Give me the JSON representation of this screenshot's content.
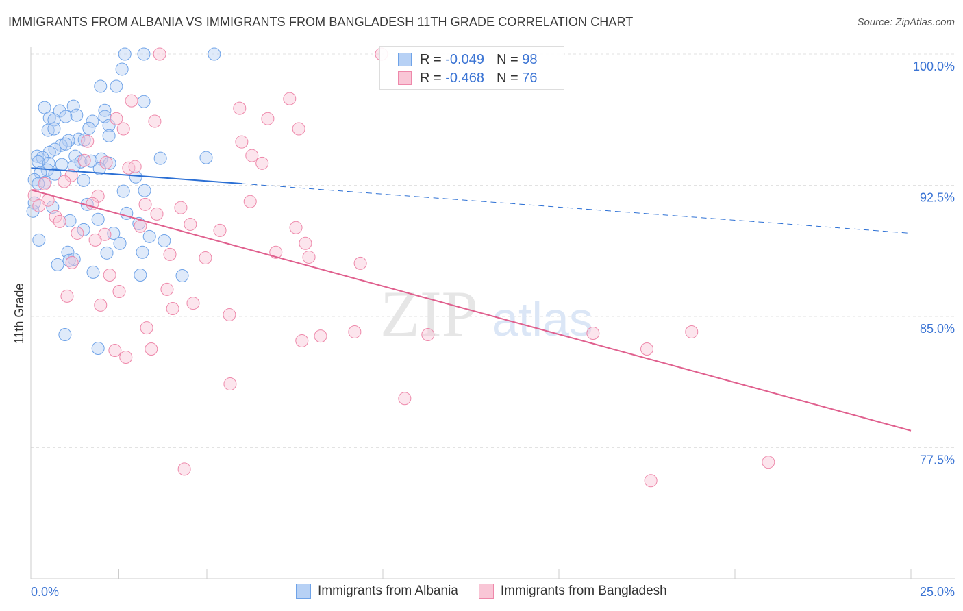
{
  "title": "IMMIGRANTS FROM ALBANIA VS IMMIGRANTS FROM BANGLADESH 11TH GRADE CORRELATION CHART",
  "source": "Source: ZipAtlas.com",
  "watermark": "ZIPatlas",
  "colors": {
    "albania": "#6fa3e8",
    "albania_fill": "#b7d1f5",
    "bangladesh": "#ee88aa",
    "bangladesh_fill": "#f9c6d6",
    "albania_line": "#2b6fd4",
    "bangladesh_line": "#e0608e",
    "accent": "#3b74d4"
  },
  "legend": {
    "rows": [
      {
        "r_label": "R = ",
        "r": "-0.049",
        "n_label": "N = ",
        "n": "98"
      },
      {
        "r_label": "R = ",
        "r": "-0.468",
        "n_label": "N = ",
        "n": "76"
      }
    ]
  },
  "chart_data": {
    "type": "scatter",
    "title": "IMMIGRANTS FROM ALBANIA VS IMMIGRANTS FROM BANGLADESH 11TH GRADE CORRELATION CHART",
    "xlabel": "",
    "ylabel": "11th Grade",
    "xlim": [
      0,
      25
    ],
    "ylim": [
      70,
      100
    ],
    "x_tick_labels": [
      "0.0%",
      "25.0%"
    ],
    "y_ticks": [
      100,
      92.5,
      85,
      77.5
    ],
    "y_tick_labels": [
      "100.0%",
      "92.5%",
      "85.0%",
      "77.5%"
    ],
    "grid": true,
    "legend_position": "bottom",
    "series": [
      {
        "name": "Immigrants from Albania",
        "R": -0.049,
        "N": 98,
        "trend": {
          "x0": 0,
          "y0": 93.49,
          "x1": 25,
          "y1": 89.76,
          "solid_until_x": 6.0
        },
        "points": [
          [
            2.67,
            100
          ],
          [
            3.21,
            100
          ],
          [
            5.21,
            100
          ],
          [
            2.59,
            99.14
          ],
          [
            1.98,
            98.16
          ],
          [
            2.43,
            98.16
          ],
          [
            3.21,
            97.29
          ],
          [
            0.39,
            96.94
          ],
          [
            1.21,
            97.02
          ],
          [
            0.82,
            96.75
          ],
          [
            2.1,
            96.78
          ],
          [
            1.3,
            96.51
          ],
          [
            0.53,
            96.35
          ],
          [
            0.66,
            96.24
          ],
          [
            0.99,
            96.43
          ],
          [
            2.1,
            96.43
          ],
          [
            1.75,
            96.16
          ],
          [
            2.22,
            95.92
          ],
          [
            1.65,
            95.76
          ],
          [
            0.49,
            95.65
          ],
          [
            0.66,
            95.73
          ],
          [
            2.22,
            95.33
          ],
          [
            1.36,
            95.14
          ],
          [
            1.07,
            95.06
          ],
          [
            1.52,
            95.1
          ],
          [
            0.86,
            94.78
          ],
          [
            0.99,
            94.86
          ],
          [
            0.68,
            94.55
          ],
          [
            0.53,
            94.39
          ],
          [
            0.18,
            94.16
          ],
          [
            0.33,
            94.08
          ],
          [
            1.26,
            94.16
          ],
          [
            2.0,
            94.0
          ],
          [
            3.68,
            94.04
          ],
          [
            4.98,
            94.08
          ],
          [
            0.21,
            93.84
          ],
          [
            0.51,
            93.76
          ],
          [
            0.88,
            93.69
          ],
          [
            1.42,
            93.84
          ],
          [
            1.71,
            93.88
          ],
          [
            2.24,
            93.76
          ],
          [
            1.23,
            93.61
          ],
          [
            1.95,
            93.45
          ],
          [
            0.47,
            93.37
          ],
          [
            0.27,
            93.22
          ],
          [
            0.68,
            93.14
          ],
          [
            2.98,
            92.98
          ],
          [
            1.5,
            92.78
          ],
          [
            0.41,
            92.67
          ],
          [
            0.1,
            92.82
          ],
          [
            0.21,
            92.59
          ],
          [
            2.63,
            92.16
          ],
          [
            3.23,
            92.2
          ],
          [
            0.1,
            91.49
          ],
          [
            0.62,
            91.25
          ],
          [
            1.6,
            91.41
          ],
          [
            0.06,
            91.02
          ],
          [
            2.72,
            90.9
          ],
          [
            1.11,
            90.47
          ],
          [
            1.91,
            90.55
          ],
          [
            3.07,
            90.31
          ],
          [
            1.5,
            89.96
          ],
          [
            2.35,
            89.76
          ],
          [
            3.37,
            89.57
          ],
          [
            3.79,
            89.33
          ],
          [
            0.23,
            89.37
          ],
          [
            2.53,
            89.18
          ],
          [
            1.05,
            88.67
          ],
          [
            2.16,
            88.63
          ],
          [
            3.17,
            88.67
          ],
          [
            1.23,
            88.27
          ],
          [
            1.09,
            88.2
          ],
          [
            0.76,
            87.96
          ],
          [
            1.77,
            87.53
          ],
          [
            3.11,
            87.37
          ],
          [
            4.3,
            87.33
          ],
          [
            0.97,
            83.96
          ],
          [
            1.91,
            83.18
          ]
        ]
      },
      {
        "name": "Immigrants from Bangladesh",
        "R": -0.468,
        "N": 76,
        "trend": {
          "x0": 0,
          "y0": 92.24,
          "x1": 25,
          "y1": 78.47,
          "solid_until_x": 25
        },
        "points": [
          [
            3.66,
            100
          ],
          [
            9.96,
            100
          ],
          [
            7.35,
            97.45
          ],
          [
            5.93,
            96.9
          ],
          [
            6.73,
            96.31
          ],
          [
            7.61,
            95.73
          ],
          [
            2.86,
            97.33
          ],
          [
            2.43,
            96.31
          ],
          [
            3.52,
            96.16
          ],
          [
            2.63,
            95.73
          ],
          [
            5.99,
            94.98
          ],
          [
            1.61,
            95.02
          ],
          [
            6.28,
            94.2
          ],
          [
            6.57,
            93.76
          ],
          [
            1.52,
            93.92
          ],
          [
            2.14,
            93.8
          ],
          [
            2.78,
            93.49
          ],
          [
            2.96,
            93.57
          ],
          [
            1.15,
            93.06
          ],
          [
            0.95,
            92.71
          ],
          [
            0.39,
            92.59
          ],
          [
            1.91,
            91.88
          ],
          [
            0.1,
            91.92
          ],
          [
            0.49,
            91.65
          ],
          [
            0.23,
            91.33
          ],
          [
            1.75,
            91.45
          ],
          [
            3.25,
            91.41
          ],
          [
            4.26,
            91.22
          ],
          [
            6.23,
            91.57
          ],
          [
            0.7,
            90.71
          ],
          [
            0.82,
            90.43
          ],
          [
            3.58,
            90.86
          ],
          [
            4.53,
            90.27
          ],
          [
            5.37,
            89.92
          ],
          [
            7.53,
            90.08
          ],
          [
            1.32,
            89.76
          ],
          [
            2.1,
            89.69
          ],
          [
            3.11,
            90.16
          ],
          [
            1.83,
            89.37
          ],
          [
            7.8,
            89.18
          ],
          [
            3.95,
            88.55
          ],
          [
            4.96,
            88.35
          ],
          [
            6.96,
            88.67
          ],
          [
            7.9,
            88.39
          ],
          [
            9.36,
            88.04
          ],
          [
            1.17,
            88.08
          ],
          [
            2.24,
            87.37
          ],
          [
            3.87,
            86.55
          ],
          [
            2.51,
            86.43
          ],
          [
            1.03,
            86.16
          ],
          [
            4.61,
            85.76
          ],
          [
            1.98,
            85.65
          ],
          [
            4.03,
            85.45
          ],
          [
            5.64,
            85.1
          ],
          [
            3.29,
            84.35
          ],
          [
            9.2,
            84.12
          ],
          [
            8.23,
            83.88
          ],
          [
            7.7,
            83.61
          ],
          [
            11.28,
            83.96
          ],
          [
            15.97,
            84.04
          ],
          [
            18.77,
            84.12
          ],
          [
            17.5,
            83.14
          ],
          [
            2.39,
            83.06
          ],
          [
            3.42,
            83.14
          ],
          [
            2.7,
            82.67
          ],
          [
            5.66,
            81.14
          ],
          [
            10.62,
            80.31
          ],
          [
            4.36,
            76.27
          ],
          [
            17.61,
            75.61
          ],
          [
            20.95,
            76.67
          ]
        ]
      }
    ]
  }
}
